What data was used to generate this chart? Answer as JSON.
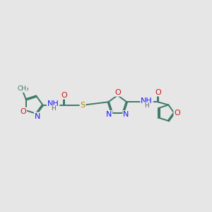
{
  "bg_color": "#e6e6e6",
  "bond_color": "#3d7a68",
  "bond_lw": 1.4,
  "dbo": 0.022,
  "fs": 8.0,
  "fs_s": 6.5,
  "colors": {
    "N": "#1a1aff",
    "O": "#cc1a1a",
    "S": "#b8860b",
    "C": "#3d7a68",
    "H": "#666666"
  },
  "xlim": [
    0,
    10
  ],
  "ylim": [
    2.5,
    7.5
  ]
}
